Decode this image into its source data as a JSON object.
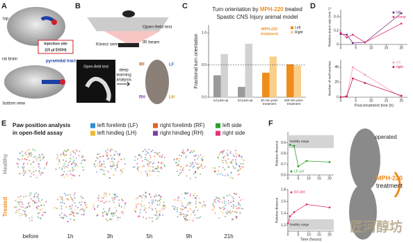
{
  "panels": {
    "a": {
      "label": "A",
      "top_view": "top view",
      "rat_brain": "rat brain",
      "bottom_view": "bottom view",
      "injection": "Injection site",
      "injection_dose": "(15 µl EtOH)",
      "tract": "pyramidal tract"
    },
    "b": {
      "label": "B",
      "open_field": "Open-field test",
      "kinect": "Kinect sensor",
      "ir_beam": "IR beam",
      "video": "Open-field test",
      "analysis": [
        "deep",
        "learning",
        "analysis"
      ],
      "paws": [
        "RF",
        "LF",
        "RH",
        "LH"
      ]
    },
    "c": {
      "label": "C",
      "title_parts": [
        "Turn orientation by ",
        "MPH-220",
        " treated"
      ],
      "subtitle": "Spastic CNS Injury animal model",
      "chart": {
        "type": "bar",
        "ylabel": "Fractional turn orientation",
        "categories": [
          "1d post-op",
          "2d post-op",
          "40 min post-treatment",
          "180 min post-treatment"
        ],
        "series": [
          {
            "name": "Left",
            "color": "#f08c1e",
            "colors": [
              "#9a9a9a",
              "#9a9a9a",
              "#f08c1e",
              "#f08c1e"
            ],
            "values": [
              0.34,
              0.16,
              0.38,
              0.51
            ]
          },
          {
            "name": "Right",
            "color": "#f9cf8a",
            "colors": [
              "#d2d2d2",
              "#d2d2d2",
              "#f9cf8a",
              "#f9cf8a"
            ],
            "values": [
              0.67,
              0.83,
              0.63,
              0.49
            ]
          }
        ],
        "ylim": [
          0,
          1.12
        ],
        "yticks": [
          {
            "value": 0,
            "label": "0.0"
          },
          0.5,
          {
            "value": 1,
            "label": "1.0"
          }
        ],
        "ref_line": 0.5,
        "legend": "upper right",
        "annotation": [
          "MPH-220",
          "treatment"
        ],
        "annotation_color": "#f08c1e"
      }
    },
    "d": {
      "label": "D",
      "charts": [
        {
          "type": "line",
          "ylabel": "Relative event rate (min⁻¹)",
          "x": [
            0,
            2,
            4,
            8,
            20
          ],
          "xlim": [
            0,
            22
          ],
          "xticks": [
            0,
            5,
            10,
            15,
            20
          ],
          "ylim": [
            0,
            0.5
          ],
          "yticks": [
            0,
            0.2,
            0.4
          ],
          "legend": "upper right",
          "series": [
            {
              "name": "fall",
              "color": "#6b2a7a",
              "values": [
                0.15,
                0.14,
                0.02,
                0.03,
                0.45
              ]
            },
            {
              "name": "cramp",
              "color": "#e8307a",
              "values": [
                0.17,
                0.1,
                0.14,
                0.03,
                0.3
              ]
            }
          ]
        },
        {
          "type": "line",
          "ylabel": "Number of wall touches",
          "xlabel": "Post-treatment time (h)",
          "x": [
            0,
            2,
            4,
            8,
            20
          ],
          "xlim": [
            0,
            22
          ],
          "xticks": [
            0,
            5,
            10,
            15,
            20
          ],
          "ylim": [
            0,
            50
          ],
          "yticks": [
            0,
            20,
            40
          ],
          "legend": "upper right",
          "series": [
            {
              "name": "left",
              "color": "#f29bbf",
              "values": [
                0,
                2,
                40,
                30,
                0
              ]
            },
            {
              "name": "right",
              "color": "#c2185b",
              "values": [
                0,
                1,
                25,
                19,
                2
              ]
            }
          ]
        }
      ]
    },
    "e": {
      "label": "E",
      "title": [
        "Paw position analysis",
        "in open-field assay"
      ],
      "legend": [
        {
          "label": "left forelimb (LF)",
          "color": "#2a8fd0"
        },
        {
          "label": "left hindleg (LH)",
          "color": "#f0b830"
        },
        {
          "label": "right forelimb (RF)",
          "color": "#e0622a"
        },
        {
          "label": "right hindleg (RH)",
          "color": "#7b3fa0"
        },
        {
          "label": "left side",
          "color": "#2ca02c"
        },
        {
          "label": "right side",
          "color": "#e8307a"
        }
      ],
      "rows": [
        "Healthy",
        "Treated"
      ],
      "row_colors": [
        "#9a9a9a",
        "#f08c1e"
      ],
      "columns": [
        "before",
        "1h",
        "3h",
        "5h",
        "9h",
        "21h"
      ]
    },
    "f": {
      "label": "F",
      "charts": [
        {
          "type": "line",
          "ylabel": "Relative distance",
          "x": [
            1,
            3,
            5,
            9,
            20
          ],
          "xlim": [
            0,
            22
          ],
          "xticks": [
            0,
            5,
            10,
            15,
            20
          ],
          "ylim": [
            0.6,
            1.0
          ],
          "yticks": [
            0.6,
            0.7,
            0.8,
            0.9
          ],
          "legend": "lower left",
          "healthy_range": [
            0.85,
            0.97
          ],
          "healthy_label": "healthy range",
          "series": [
            {
              "name": "LF-LH",
              "color": "#2ca02c",
              "values": [
                0.88,
                0.87,
                0.68,
                0.73,
                0.72
              ]
            }
          ]
        },
        {
          "type": "line",
          "ylabel": "Relative distance",
          "xlabel": "Time (hours)",
          "x": [
            0,
            1,
            3,
            9,
            20
          ],
          "xlim": [
            0,
            22
          ],
          "xticks": [
            0,
            5,
            10,
            15,
            20
          ],
          "ylim": [
            1.1,
            1.8
          ],
          "yticks": [
            1.2,
            1.4,
            1.6,
            1.8
          ],
          "legend": "upper left",
          "healthy_range": [
            1.12,
            1.3
          ],
          "healthy_label": "healthy range",
          "series": [
            {
              "name": "RF-RH",
              "color": "#e8307a",
              "values": [
                1.23,
                1.35,
                1.42,
                1.55,
                1.5
              ]
            }
          ]
        }
      ],
      "operated": "operated",
      "treatment": [
        "MPH-220",
        "treatment"
      ],
      "treatment_color": "#f08c1e"
    },
    "watermark": "匠河醇坊"
  }
}
